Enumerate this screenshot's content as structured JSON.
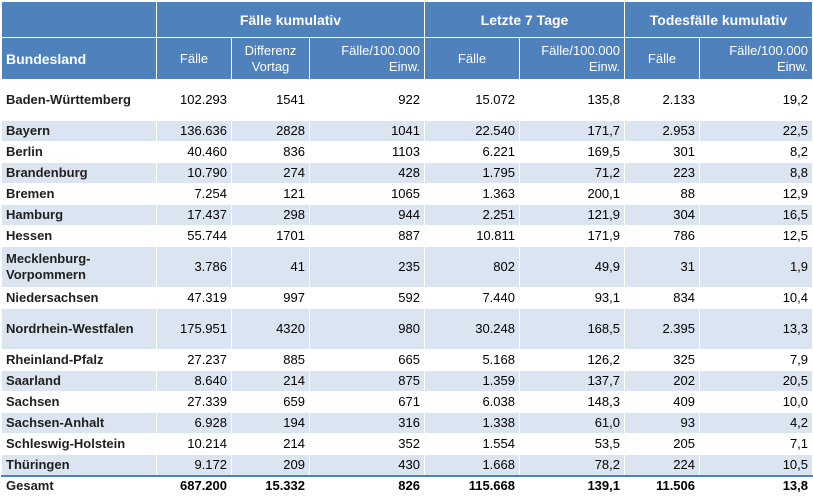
{
  "header": {
    "group1": "Fälle kumulativ",
    "group2": "Letzte 7 Tage",
    "group3": "Todesfälle kumulativ",
    "col_bundesland": "Bundesland",
    "col_faelle": "Fälle",
    "col_differenz": "Differenz Vortag",
    "col_per100k": "Fälle/100.000 Einw.",
    "col_faelle7": "Fälle",
    "col_per100k7": "Fälle/100.000 Einw.",
    "col_tod": "Fälle",
    "col_tod100k": "Fälle/100.000 Einw."
  },
  "rows": [
    {
      "name": "Baden-Württemberg",
      "faelle": "102.293",
      "diff": "1541",
      "per100k": "922",
      "f7": "15.072",
      "p7": "135,8",
      "tod": "2.133",
      "tod100k": "19,2"
    },
    {
      "name": "Bayern",
      "faelle": "136.636",
      "diff": "2828",
      "per100k": "1041",
      "f7": "22.540",
      "p7": "171,7",
      "tod": "2.953",
      "tod100k": "22,5"
    },
    {
      "name": "Berlin",
      "faelle": "40.460",
      "diff": "836",
      "per100k": "1103",
      "f7": "6.221",
      "p7": "169,5",
      "tod": "301",
      "tod100k": "8,2"
    },
    {
      "name": "Brandenburg",
      "faelle": "10.790",
      "diff": "274",
      "per100k": "428",
      "f7": "1.795",
      "p7": "71,2",
      "tod": "223",
      "tod100k": "8,8"
    },
    {
      "name": "Bremen",
      "faelle": "7.254",
      "diff": "121",
      "per100k": "1065",
      "f7": "1.363",
      "p7": "200,1",
      "tod": "88",
      "tod100k": "12,9"
    },
    {
      "name": "Hamburg",
      "faelle": "17.437",
      "diff": "298",
      "per100k": "944",
      "f7": "2.251",
      "p7": "121,9",
      "tod": "304",
      "tod100k": "16,5"
    },
    {
      "name": "Hessen",
      "faelle": "55.744",
      "diff": "1701",
      "per100k": "887",
      "f7": "10.811",
      "p7": "171,9",
      "tod": "786",
      "tod100k": "12,5"
    },
    {
      "name": "Mecklenburg-Vorpommern",
      "faelle": "3.786",
      "diff": "41",
      "per100k": "235",
      "f7": "802",
      "p7": "49,9",
      "tod": "31",
      "tod100k": "1,9"
    },
    {
      "name": "Niedersachsen",
      "faelle": "47.319",
      "diff": "997",
      "per100k": "592",
      "f7": "7.440",
      "p7": "93,1",
      "tod": "834",
      "tod100k": "10,4"
    },
    {
      "name": "Nordrhein-Westfalen",
      "faelle": "175.951",
      "diff": "4320",
      "per100k": "980",
      "f7": "30.248",
      "p7": "168,5",
      "tod": "2.395",
      "tod100k": "13,3"
    },
    {
      "name": "Rheinland-Pfalz",
      "faelle": "27.237",
      "diff": "885",
      "per100k": "665",
      "f7": "5.168",
      "p7": "126,2",
      "tod": "325",
      "tod100k": "7,9"
    },
    {
      "name": "Saarland",
      "faelle": "8.640",
      "diff": "214",
      "per100k": "875",
      "f7": "1.359",
      "p7": "137,7",
      "tod": "202",
      "tod100k": "20,5"
    },
    {
      "name": "Sachsen",
      "faelle": "27.339",
      "diff": "659",
      "per100k": "671",
      "f7": "6.038",
      "p7": "148,3",
      "tod": "409",
      "tod100k": "10,0"
    },
    {
      "name": "Sachsen-Anhalt",
      "faelle": "6.928",
      "diff": "194",
      "per100k": "316",
      "f7": "1.338",
      "p7": "61,0",
      "tod": "93",
      "tod100k": "4,2"
    },
    {
      "name": "Schleswig-Holstein",
      "faelle": "10.214",
      "diff": "214",
      "per100k": "352",
      "f7": "1.554",
      "p7": "53,5",
      "tod": "205",
      "tod100k": "7,1"
    },
    {
      "name": "Thüringen",
      "faelle": "9.172",
      "diff": "209",
      "per100k": "430",
      "f7": "1.668",
      "p7": "78,2",
      "tod": "224",
      "tod100k": "10,5"
    }
  ],
  "total": {
    "name": "Gesamt",
    "faelle": "687.200",
    "diff": "15.332",
    "per100k": "826",
    "f7": "115.668",
    "p7": "139,1",
    "tod": "11.506",
    "tod100k": "13,8"
  },
  "colors": {
    "header_bg": "#4f81bd",
    "header_text": "#ffffff",
    "stripe": "#dbe5f1"
  }
}
